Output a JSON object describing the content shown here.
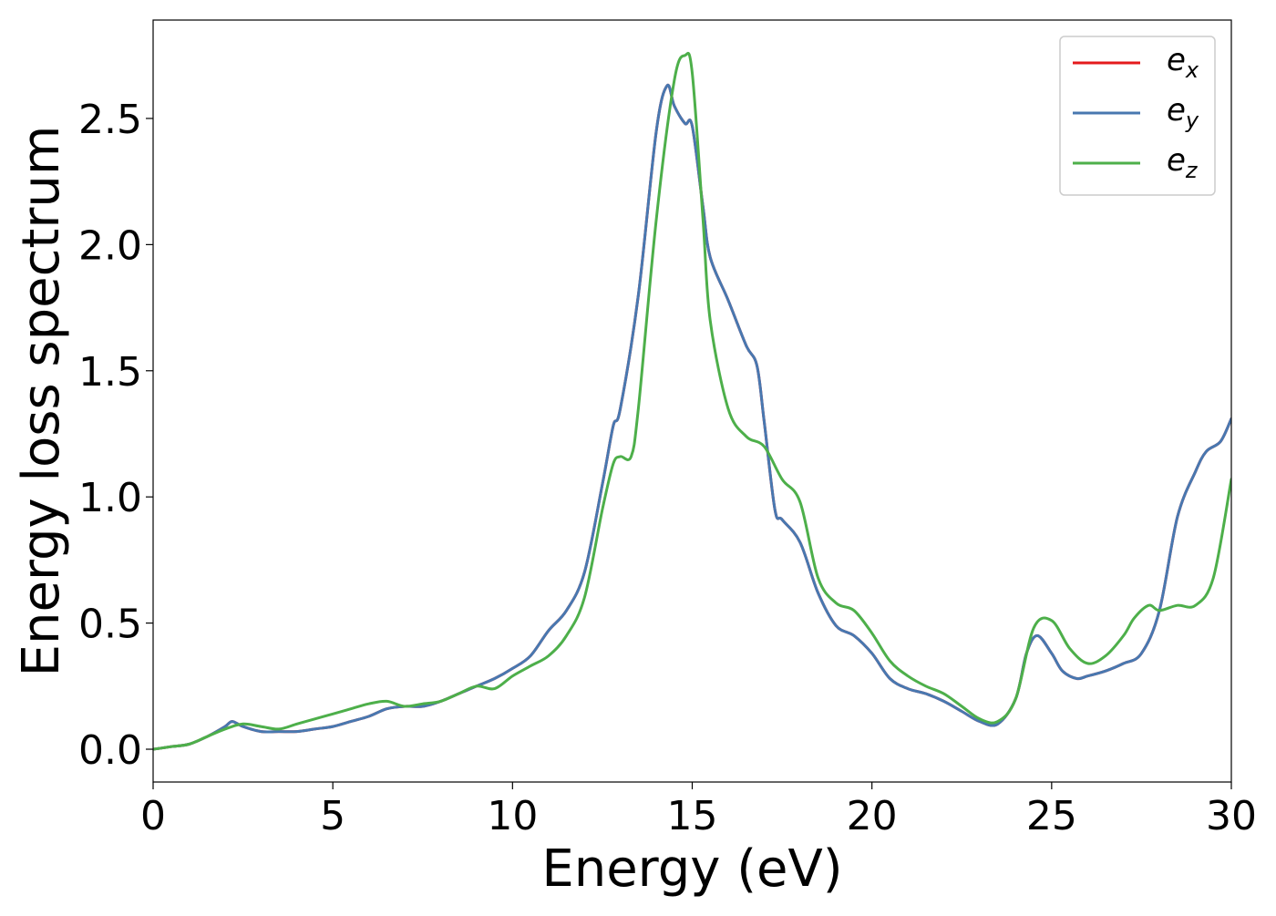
{
  "chart_data": {
    "type": "line",
    "title": "",
    "xlabel": "Energy (eV)",
    "ylabel": "Energy loss spectrum",
    "xlim": [
      0,
      30
    ],
    "ylim": [
      -0.13,
      2.89
    ],
    "xticks": [
      0,
      5,
      10,
      15,
      20,
      25,
      30
    ],
    "yticks": [
      0.0,
      0.5,
      1.0,
      1.5,
      2.0,
      2.5
    ],
    "xtick_labels": [
      "0",
      "5",
      "10",
      "15",
      "20",
      "25",
      "30"
    ],
    "ytick_labels": [
      "0.0",
      "0.5",
      "1.0",
      "1.5",
      "2.0",
      "2.5"
    ],
    "grid": false,
    "legend_position": "top-right",
    "series": [
      {
        "name": "e_x",
        "label_base": "e",
        "label_sub": "x",
        "color": "#e41a1c",
        "x": [
          0,
          0.5,
          1.0,
          1.5,
          2.0,
          2.2,
          2.5,
          3.0,
          3.5,
          4.0,
          4.5,
          5.0,
          5.5,
          6.0,
          6.5,
          7.0,
          7.5,
          8.0,
          8.5,
          9.0,
          9.5,
          10.0,
          10.5,
          11.0,
          11.5,
          12.0,
          12.5,
          12.8,
          13.0,
          13.5,
          14.0,
          14.3,
          14.5,
          14.8,
          15.0,
          15.3,
          15.5,
          16.0,
          16.5,
          16.8,
          17.0,
          17.3,
          17.5,
          18.0,
          18.5,
          19.0,
          19.5,
          20.0,
          20.5,
          21.0,
          21.5,
          22.0,
          22.5,
          23.0,
          23.5,
          24.0,
          24.3,
          24.6,
          25.0,
          25.3,
          25.7,
          26.0,
          26.5,
          27.0,
          27.5,
          28.0,
          28.5,
          29.0,
          29.3,
          29.7,
          30.0
        ],
        "y": [
          0.0,
          0.01,
          0.02,
          0.05,
          0.09,
          0.11,
          0.09,
          0.07,
          0.07,
          0.07,
          0.08,
          0.09,
          0.11,
          0.13,
          0.16,
          0.17,
          0.17,
          0.19,
          0.22,
          0.25,
          0.28,
          0.32,
          0.37,
          0.47,
          0.55,
          0.7,
          1.05,
          1.28,
          1.35,
          1.8,
          2.45,
          2.63,
          2.55,
          2.48,
          2.47,
          2.15,
          1.95,
          1.78,
          1.6,
          1.52,
          1.3,
          0.95,
          0.91,
          0.82,
          0.62,
          0.49,
          0.45,
          0.38,
          0.28,
          0.24,
          0.22,
          0.19,
          0.15,
          0.11,
          0.1,
          0.2,
          0.38,
          0.45,
          0.38,
          0.31,
          0.28,
          0.29,
          0.31,
          0.34,
          0.38,
          0.55,
          0.92,
          1.1,
          1.18,
          1.22,
          1.31
        ]
      },
      {
        "name": "e_y",
        "label_base": "e",
        "label_sub": "y",
        "color": "#4878b0",
        "x": [
          0,
          0.5,
          1.0,
          1.5,
          2.0,
          2.2,
          2.5,
          3.0,
          3.5,
          4.0,
          4.5,
          5.0,
          5.5,
          6.0,
          6.5,
          7.0,
          7.5,
          8.0,
          8.5,
          9.0,
          9.5,
          10.0,
          10.5,
          11.0,
          11.5,
          12.0,
          12.5,
          12.8,
          13.0,
          13.5,
          14.0,
          14.3,
          14.5,
          14.8,
          15.0,
          15.3,
          15.5,
          16.0,
          16.5,
          16.8,
          17.0,
          17.3,
          17.5,
          18.0,
          18.5,
          19.0,
          19.5,
          20.0,
          20.5,
          21.0,
          21.5,
          22.0,
          22.5,
          23.0,
          23.5,
          24.0,
          24.3,
          24.6,
          25.0,
          25.3,
          25.7,
          26.0,
          26.5,
          27.0,
          27.5,
          28.0,
          28.5,
          29.0,
          29.3,
          29.7,
          30.0
        ],
        "y": [
          0.0,
          0.01,
          0.02,
          0.05,
          0.09,
          0.11,
          0.09,
          0.07,
          0.07,
          0.07,
          0.08,
          0.09,
          0.11,
          0.13,
          0.16,
          0.17,
          0.17,
          0.19,
          0.22,
          0.25,
          0.28,
          0.32,
          0.37,
          0.47,
          0.55,
          0.7,
          1.05,
          1.28,
          1.35,
          1.8,
          2.45,
          2.63,
          2.55,
          2.48,
          2.47,
          2.15,
          1.95,
          1.78,
          1.6,
          1.52,
          1.3,
          0.95,
          0.91,
          0.82,
          0.62,
          0.49,
          0.45,
          0.38,
          0.28,
          0.24,
          0.22,
          0.19,
          0.15,
          0.11,
          0.1,
          0.2,
          0.38,
          0.45,
          0.38,
          0.31,
          0.28,
          0.29,
          0.31,
          0.34,
          0.38,
          0.55,
          0.92,
          1.1,
          1.18,
          1.22,
          1.31
        ]
      },
      {
        "name": "e_z",
        "label_base": "e",
        "label_sub": "z",
        "color": "#4daf4a",
        "x": [
          0,
          0.5,
          1.0,
          1.5,
          2.0,
          2.5,
          3.0,
          3.5,
          4.0,
          4.5,
          5.0,
          5.5,
          6.0,
          6.5,
          7.0,
          7.5,
          8.0,
          8.5,
          9.0,
          9.5,
          10.0,
          10.5,
          11.0,
          11.5,
          12.0,
          12.5,
          12.8,
          13.0,
          13.3,
          13.5,
          14.0,
          14.5,
          14.8,
          15.0,
          15.3,
          15.5,
          16.0,
          16.5,
          17.0,
          17.5,
          18.0,
          18.5,
          19.0,
          19.5,
          20.0,
          20.5,
          21.0,
          21.5,
          22.0,
          22.5,
          23.0,
          23.5,
          24.0,
          24.5,
          25.0,
          25.5,
          26.0,
          26.5,
          27.0,
          27.3,
          27.7,
          28.0,
          28.5,
          29.0,
          29.5,
          30.0
        ],
        "y": [
          0.0,
          0.01,
          0.02,
          0.05,
          0.08,
          0.1,
          0.09,
          0.08,
          0.1,
          0.12,
          0.14,
          0.16,
          0.18,
          0.19,
          0.17,
          0.18,
          0.19,
          0.22,
          0.25,
          0.24,
          0.29,
          0.33,
          0.37,
          0.45,
          0.6,
          0.95,
          1.13,
          1.16,
          1.16,
          1.35,
          2.1,
          2.65,
          2.75,
          2.68,
          2.1,
          1.7,
          1.35,
          1.24,
          1.2,
          1.07,
          0.98,
          0.68,
          0.58,
          0.55,
          0.46,
          0.35,
          0.29,
          0.25,
          0.22,
          0.17,
          0.12,
          0.11,
          0.2,
          0.48,
          0.51,
          0.4,
          0.34,
          0.37,
          0.45,
          0.52,
          0.57,
          0.55,
          0.57,
          0.57,
          0.68,
          1.07
        ]
      }
    ]
  }
}
